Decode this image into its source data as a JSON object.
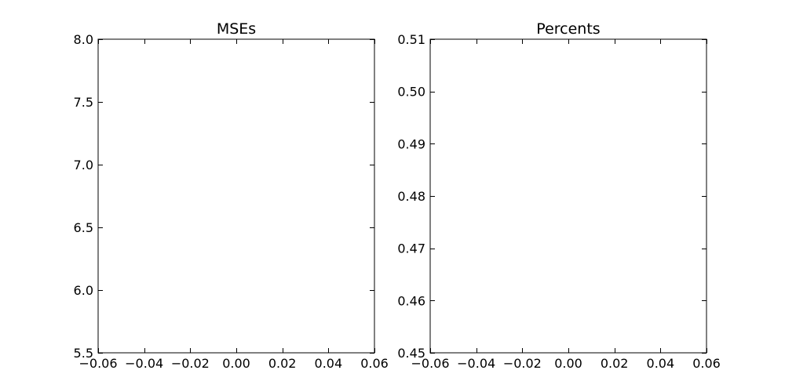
{
  "chart_data": [
    {
      "type": "line",
      "title": "MSEs",
      "xlabel": "",
      "ylabel": "",
      "xlim": [
        -0.06,
        0.06
      ],
      "ylim": [
        5.5,
        8.0
      ],
      "x_ticks": [
        -0.06,
        -0.04,
        -0.02,
        0.0,
        0.02,
        0.04,
        0.06
      ],
      "x_tick_labels": [
        "−0.06",
        "−0.04",
        "−0.02",
        "0.00",
        "0.02",
        "0.04",
        "0.06"
      ],
      "y_ticks": [
        5.5,
        6.0,
        6.5,
        7.0,
        7.5,
        8.0
      ],
      "y_tick_labels": [
        "5.5",
        "6.0",
        "6.5",
        "7.0",
        "7.5",
        "8.0"
      ],
      "series": [],
      "grid": false
    },
    {
      "type": "line",
      "title": "Percents",
      "xlabel": "",
      "ylabel": "",
      "xlim": [
        -0.06,
        0.06
      ],
      "ylim": [
        0.45,
        0.51
      ],
      "x_ticks": [
        -0.06,
        -0.04,
        -0.02,
        0.0,
        0.02,
        0.04,
        0.06
      ],
      "x_tick_labels": [
        "−0.06",
        "−0.04",
        "−0.02",
        "0.00",
        "0.02",
        "0.04",
        "0.06"
      ],
      "y_ticks": [
        0.45,
        0.46,
        0.47,
        0.48,
        0.49,
        0.5,
        0.51
      ],
      "y_tick_labels": [
        "0.45",
        "0.46",
        "0.47",
        "0.48",
        "0.49",
        "0.50",
        "0.51"
      ],
      "series": [],
      "grid": false
    }
  ]
}
